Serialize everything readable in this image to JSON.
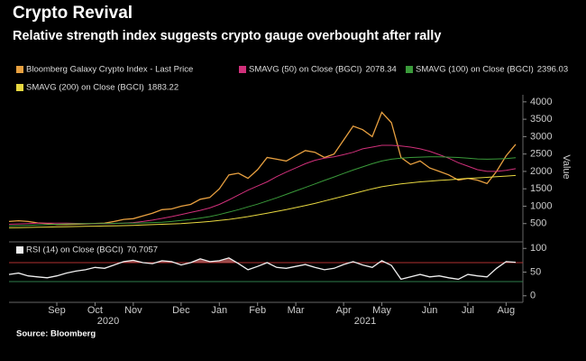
{
  "chart_data": [
    {
      "type": "line",
      "title": "Crypto Revival",
      "subtitle": "Relative strength index suggests crypto gauge overbought after rally",
      "y_axis_label": "Value",
      "categories": [
        null,
        null,
        null,
        null,
        null,
        "Sep",
        null,
        null,
        null,
        "Oct",
        null,
        null,
        null,
        "Nov",
        null,
        null,
        null,
        null,
        "Dec",
        null,
        null,
        null,
        "Jan",
        null,
        null,
        null,
        "Feb",
        null,
        null,
        null,
        "Mar",
        null,
        null,
        null,
        null,
        "Apr",
        null,
        null,
        null,
        "May",
        null,
        null,
        null,
        null,
        "Jun",
        null,
        null,
        null,
        "Jul",
        null,
        null,
        null,
        "Aug",
        null
      ],
      "year_labels": [
        "2020",
        "2021"
      ],
      "ylim": [
        0,
        4100
      ],
      "yticks": [
        500,
        1000,
        1500,
        2000,
        2500,
        3000,
        3500,
        4000
      ],
      "series": [
        {
          "name": "Bloomberg Galaxy Crypto Index - Last Price",
          "color": "#e8a040",
          "values": [
            560,
            580,
            560,
            520,
            500,
            470,
            470,
            480,
            490,
            500,
            510,
            560,
            620,
            640,
            720,
            800,
            900,
            920,
            1000,
            1050,
            1200,
            1250,
            1500,
            1900,
            1950,
            1800,
            2050,
            2400,
            2350,
            2300,
            2450,
            2600,
            2550,
            2400,
            2500,
            2900,
            3300,
            3200,
            3000,
            3700,
            3400,
            2400,
            2200,
            2300,
            2100,
            2000,
            1900,
            1750,
            1800,
            1750,
            1650,
            2000,
            2450,
            2780
          ]
        },
        {
          "name": "SMAVG (50)  on Close (BGCI)",
          "color": "#d0307a",
          "values": [
            480,
            490,
            500,
            510,
            515,
            515,
            510,
            505,
            500,
            495,
            495,
            500,
            510,
            530,
            560,
            600,
            650,
            700,
            760,
            820,
            880,
            950,
            1050,
            1180,
            1320,
            1460,
            1580,
            1700,
            1850,
            1980,
            2100,
            2220,
            2320,
            2380,
            2420,
            2480,
            2550,
            2650,
            2700,
            2750,
            2750,
            2730,
            2700,
            2650,
            2580,
            2480,
            2380,
            2250,
            2150,
            2050,
            2000,
            2000,
            2030,
            2078.34
          ]
        },
        {
          "name": "SMAVG (100)  on Close (BGCI)",
          "color": "#3a9a3a",
          "values": [
            430,
            440,
            450,
            460,
            470,
            480,
            490,
            495,
            500,
            500,
            500,
            505,
            510,
            515,
            520,
            530,
            540,
            560,
            590,
            620,
            660,
            700,
            760,
            830,
            900,
            980,
            1060,
            1150,
            1240,
            1340,
            1440,
            1540,
            1640,
            1740,
            1840,
            1940,
            2040,
            2130,
            2220,
            2300,
            2350,
            2380,
            2400,
            2410,
            2420,
            2420,
            2410,
            2400,
            2380,
            2360,
            2350,
            2360,
            2370,
            2396.03
          ]
        },
        {
          "name": "SMAVG (200)  on Close (BGCI)",
          "color": "#e8d840",
          "values": [
            380,
            385,
            390,
            395,
            400,
            405,
            410,
            415,
            420,
            425,
            430,
            435,
            440,
            450,
            460,
            470,
            480,
            490,
            500,
            520,
            540,
            560,
            590,
            620,
            660,
            700,
            750,
            800,
            850,
            900,
            960,
            1020,
            1080,
            1150,
            1220,
            1290,
            1360,
            1430,
            1500,
            1560,
            1600,
            1640,
            1670,
            1700,
            1720,
            1740,
            1760,
            1780,
            1800,
            1815,
            1830,
            1850,
            1865,
            1883.22
          ]
        }
      ]
    },
    {
      "type": "line",
      "ylim": [
        -10,
        110
      ],
      "yticks": [
        0,
        50,
        100
      ],
      "levels": [
        {
          "value": 70,
          "color": "#b03030"
        },
        {
          "value": 30,
          "color": "#2e7d4a"
        }
      ],
      "series": [
        {
          "name": "RSI (14)  on Close (BGCI)",
          "color": "#f0f0f0",
          "values": [
            45,
            48,
            42,
            40,
            38,
            42,
            48,
            52,
            55,
            60,
            58,
            65,
            72,
            75,
            70,
            68,
            74,
            72,
            65,
            70,
            78,
            72,
            74,
            80,
            68,
            55,
            62,
            70,
            60,
            58,
            62,
            66,
            60,
            55,
            58,
            66,
            72,
            65,
            60,
            74,
            64,
            35,
            40,
            45,
            40,
            42,
            38,
            35,
            45,
            42,
            40,
            58,
            72,
            70.7057
          ]
        }
      ]
    }
  ],
  "source": "Source: Bloomberg"
}
